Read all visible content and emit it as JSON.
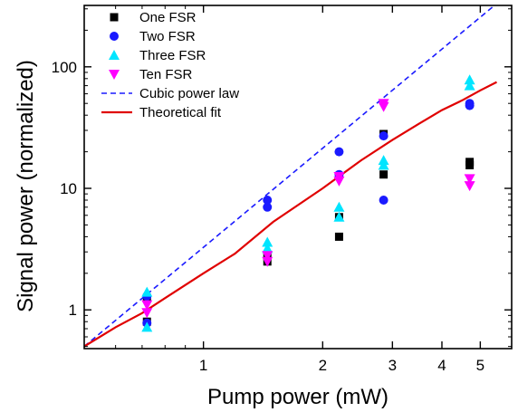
{
  "chart_data": {
    "type": "scatter",
    "xlabel": "Pump power (mW)",
    "ylabel": "Signal power (normalized)",
    "xscale": "log",
    "yscale": "log",
    "xlim": [
      0.5,
      6.0
    ],
    "ylim": [
      0.48,
      320
    ],
    "x_ticks": [
      1,
      2,
      3,
      4,
      5
    ],
    "x_tick_labels": [
      "1",
      "2",
      "3",
      "4",
      "5"
    ],
    "y_ticks": [
      1,
      10,
      100
    ],
    "y_tick_labels": [
      "1",
      "10",
      "100"
    ],
    "legend_position": "top-left",
    "series": [
      {
        "name": "One FSR",
        "marker": "square",
        "color": "#000000",
        "points": [
          [
            0.72,
            0.8
          ],
          [
            0.72,
            1.25
          ],
          [
            1.45,
            2.5
          ],
          [
            1.45,
            2.8
          ],
          [
            2.2,
            4.0
          ],
          [
            2.2,
            5.8
          ],
          [
            2.85,
            13.0
          ],
          [
            2.85,
            28.0
          ],
          [
            4.7,
            15.5
          ],
          [
            4.7,
            16.5
          ]
        ]
      },
      {
        "name": "Two FSR",
        "marker": "circle",
        "color": "#1a1aff",
        "points": [
          [
            0.72,
            0.78
          ],
          [
            0.72,
            1.3
          ],
          [
            1.45,
            7.0
          ],
          [
            1.45,
            8.0
          ],
          [
            2.2,
            13.0
          ],
          [
            2.2,
            20.0
          ],
          [
            2.85,
            8.0
          ],
          [
            2.85,
            27.0
          ],
          [
            4.7,
            48.0
          ],
          [
            4.7,
            50.0
          ]
        ]
      },
      {
        "name": "Three FSR",
        "marker": "triangle-up",
        "color": "#00e5ff",
        "points": [
          [
            0.72,
            0.72
          ],
          [
            0.72,
            1.4
          ],
          [
            1.45,
            3.2
          ],
          [
            1.45,
            3.6
          ],
          [
            2.2,
            5.8
          ],
          [
            2.2,
            7.0
          ],
          [
            2.85,
            15.5
          ],
          [
            2.85,
            17.0
          ],
          [
            4.7,
            70.0
          ],
          [
            4.7,
            78.0
          ]
        ]
      },
      {
        "name": "Ten FSR",
        "marker": "triangle-down",
        "color": "#ff00ff",
        "points": [
          [
            0.72,
            0.95
          ],
          [
            0.72,
            1.1
          ],
          [
            1.45,
            2.5
          ],
          [
            1.45,
            2.8
          ],
          [
            2.2,
            11.5
          ],
          [
            2.2,
            12.5
          ],
          [
            2.85,
            47.0
          ],
          [
            2.85,
            50.0
          ],
          [
            4.7,
            10.5
          ],
          [
            4.7,
            12.0
          ]
        ]
      }
    ],
    "lines": [
      {
        "name": "Cubic power law",
        "style": "dashed",
        "color": "#1a1aff",
        "points": [
          [
            0.5,
            0.5
          ],
          [
            5.43,
            320.0
          ]
        ]
      },
      {
        "name": "Theoretical fit",
        "style": "solid",
        "color": "#e00000",
        "points": [
          [
            0.5,
            0.5
          ],
          [
            0.6,
            0.72
          ],
          [
            0.7,
            0.94
          ],
          [
            0.8,
            1.25
          ],
          [
            1.0,
            2.0
          ],
          [
            1.2,
            2.9
          ],
          [
            1.5,
            5.3
          ],
          [
            2.0,
            10.0
          ],
          [
            2.5,
            17.0
          ],
          [
            3.0,
            25.0
          ],
          [
            3.5,
            34.0
          ],
          [
            4.0,
            44.0
          ],
          [
            4.5,
            53.0
          ],
          [
            5.0,
            64.0
          ],
          [
            5.5,
            75.0
          ]
        ]
      }
    ]
  }
}
